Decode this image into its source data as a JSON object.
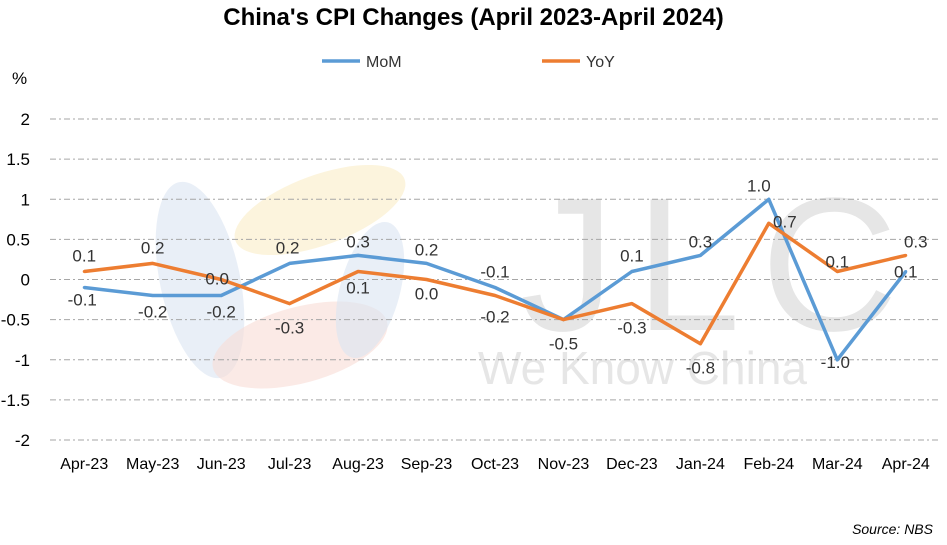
{
  "watermark": {
    "logo_text": "JLC",
    "tagline": "We Know China"
  },
  "source": "Source: NBS",
  "chart_data": {
    "type": "line",
    "title": "China's CPI Changes (April 2023-April 2024)",
    "ylabel": "%",
    "xlabel": "",
    "ylim": [
      -2,
      2
    ],
    "yticks": [
      2,
      1.5,
      1,
      0.5,
      0,
      -0.5,
      -1,
      -1.5,
      -2
    ],
    "ytick_labels": [
      "2",
      "1.5",
      "1",
      "0.5",
      "0",
      "-0.5",
      "-1",
      "-1.5",
      "-2"
    ],
    "grid": true,
    "legend_position": "top",
    "categories": [
      "Apr-23",
      "May-23",
      "Jun-23",
      "Jul-23",
      "Aug-23",
      "Sep-23",
      "Oct-23",
      "Nov-23",
      "Dec-23",
      "Jan-24",
      "Feb-24",
      "Mar-24",
      "Apr-24"
    ],
    "series": [
      {
        "name": "MoM",
        "color": "#5B9BD5",
        "values": [
          -0.1,
          -0.2,
          -0.2,
          0.2,
          0.3,
          0.2,
          -0.1,
          -0.5,
          0.1,
          0.3,
          1.0,
          -1.0,
          0.1
        ],
        "labels": [
          "-0.1",
          "-0.2",
          "-0.2",
          "0.2",
          "0.3",
          "0.2",
          "-0.1",
          "-0.5",
          "0.1",
          "0.3",
          "1.0",
          "-1.0",
          "0.1"
        ]
      },
      {
        "name": "YoY",
        "color": "#ED7D31",
        "values": [
          0.1,
          0.2,
          0.0,
          -0.3,
          0.1,
          0.0,
          -0.2,
          -0.5,
          -0.3,
          -0.8,
          0.7,
          0.1,
          0.3
        ],
        "labels": [
          "0.1",
          "0.2",
          "0.0",
          "-0.3",
          "0.1",
          "0.0",
          "-0.2",
          "",
          "-0.3",
          "-0.8",
          "0.7",
          "0.1",
          "0.3"
        ]
      }
    ]
  }
}
